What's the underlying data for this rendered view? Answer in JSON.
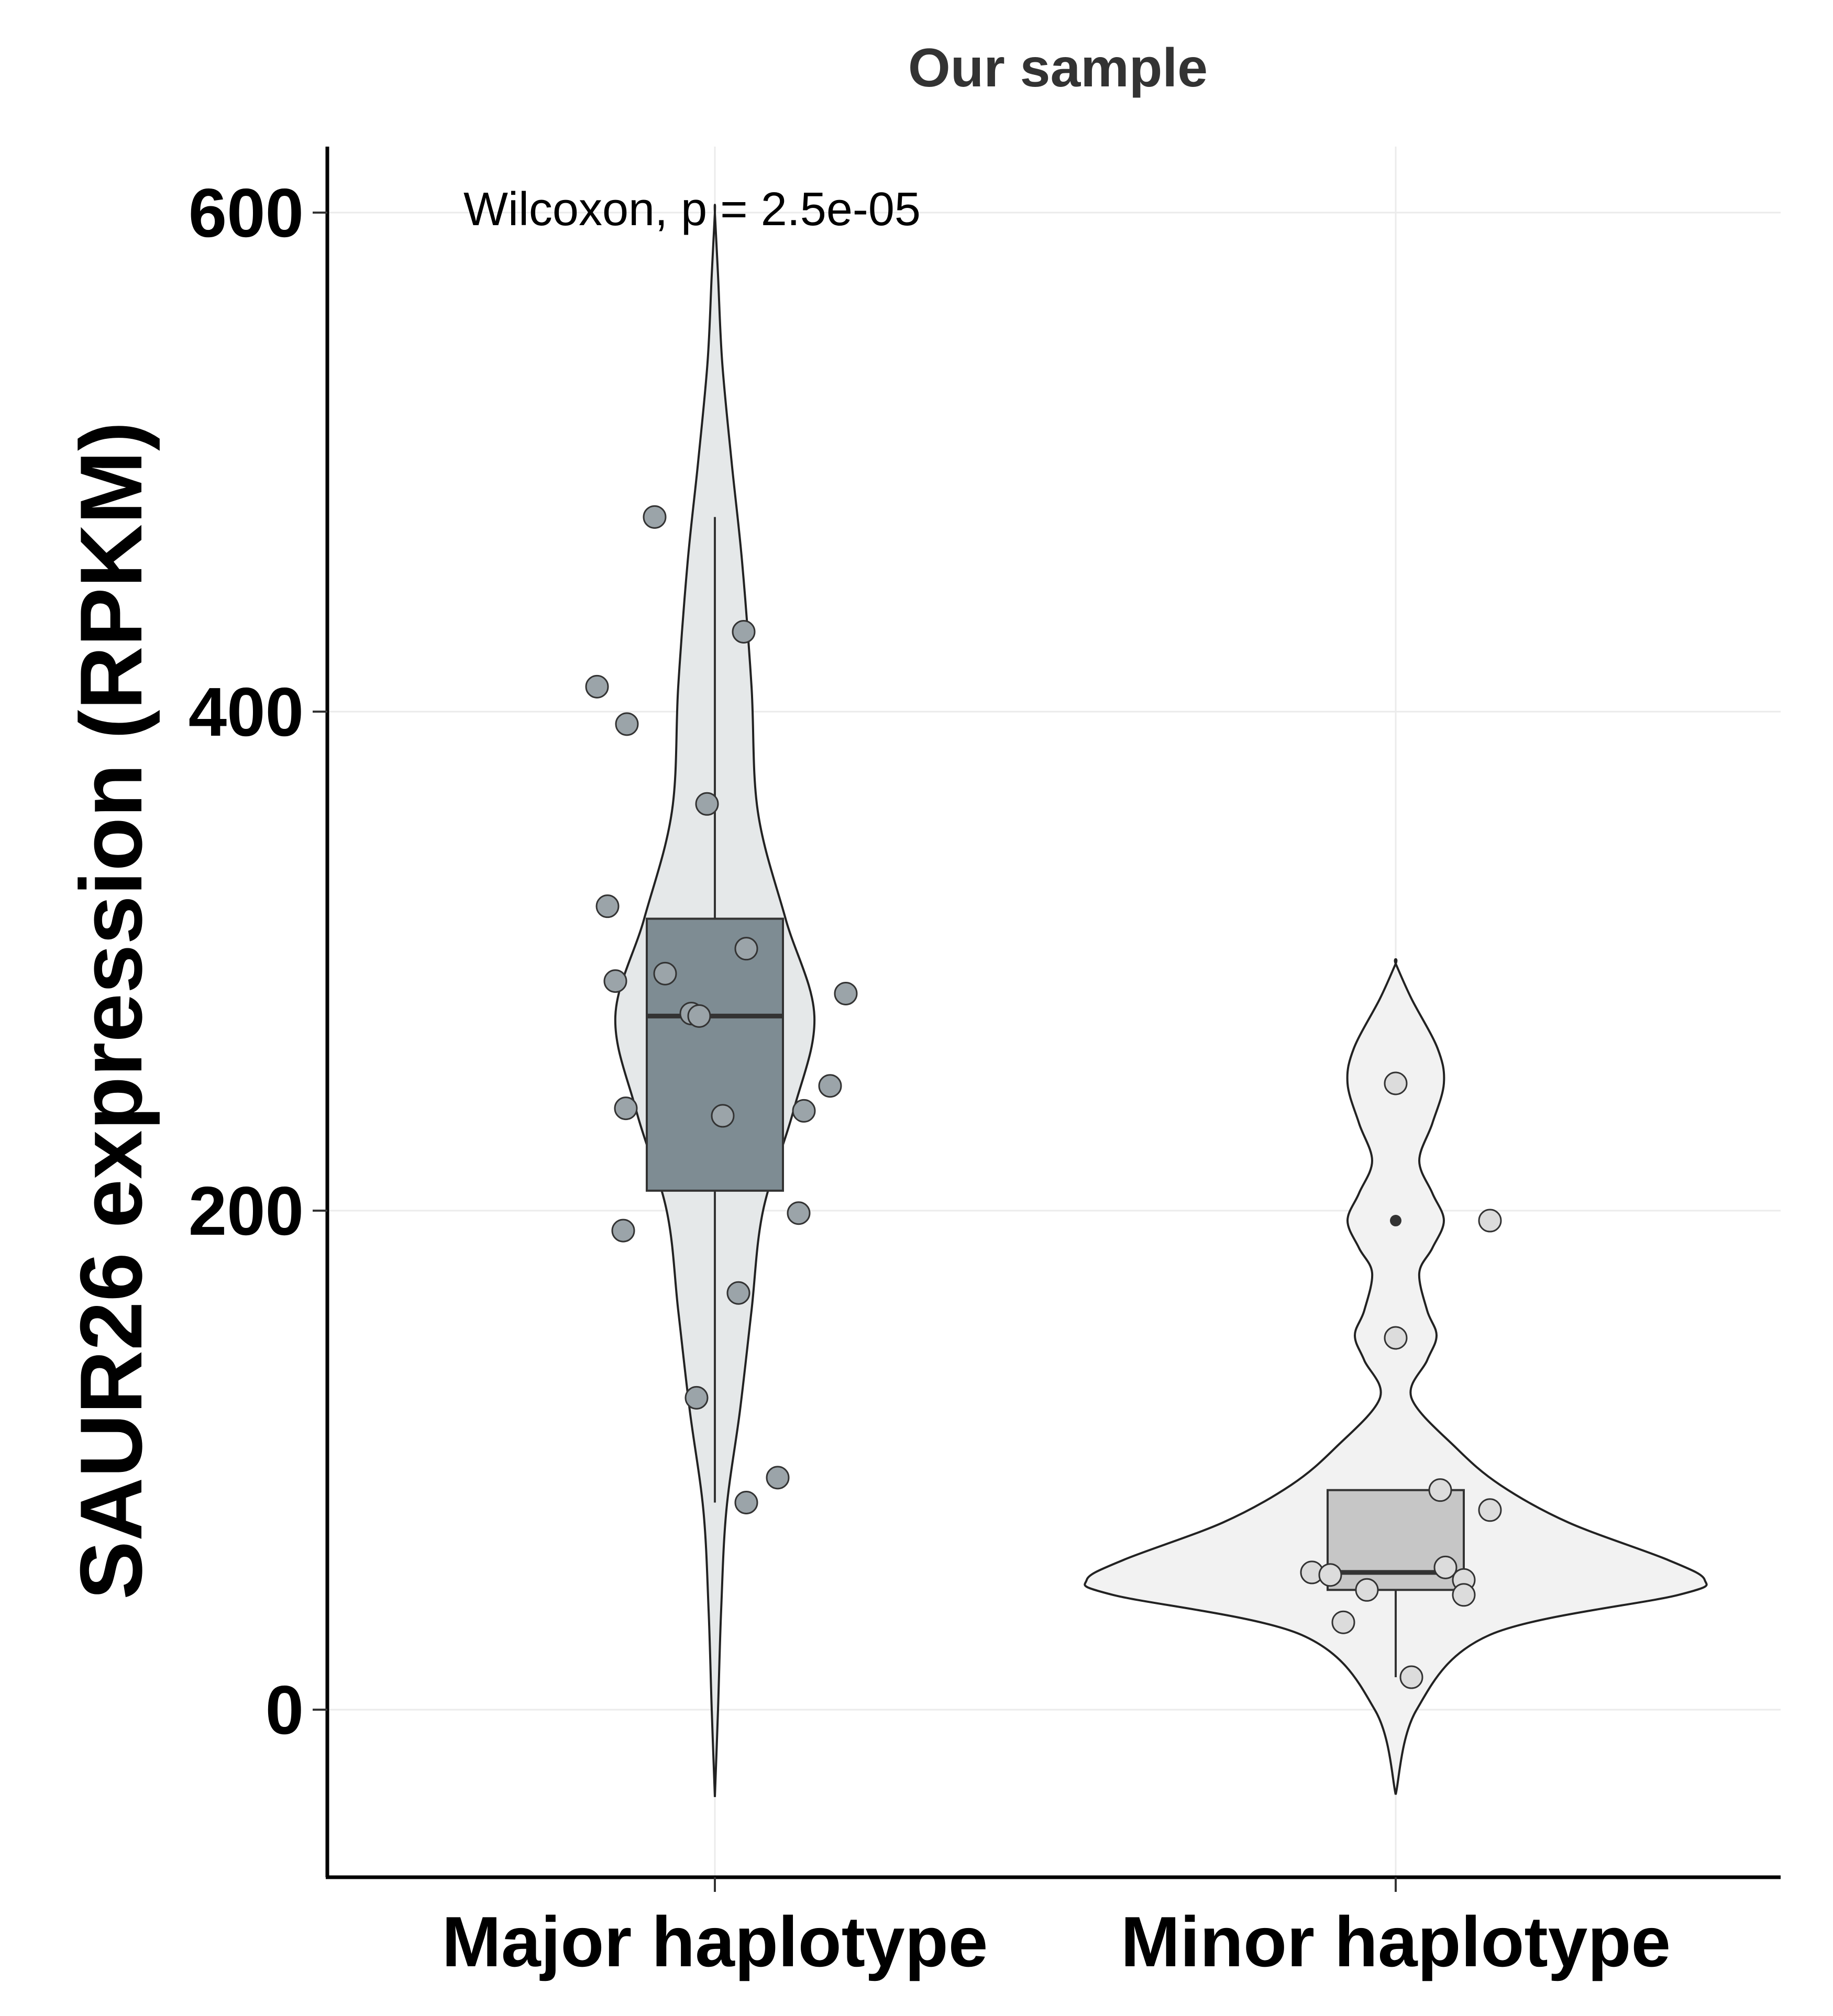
{
  "chart_data": {
    "type": "violin",
    "title": "Our sample",
    "xlabel": "",
    "ylabel": "SAUR26 expression (RPKM)",
    "ylim": [
      -67,
      625
    ],
    "yticks": [
      0,
      200,
      400,
      600
    ],
    "categories": [
      "Major haplotype",
      "Minor haplotype"
    ],
    "grid": true,
    "legend": "none",
    "annotation": "Wilcoxon, p = 2.5e-05",
    "series": [
      {
        "category": "Major haplotype",
        "violin_fill": "#e5e8e9",
        "box_fill": "#7e8c93",
        "point_fill": "#9ba4a9",
        "violin_range": [
          -35,
          600
        ],
        "box": {
          "whisker_low": 83,
          "q1": 208,
          "median": 278,
          "q3": 317,
          "whisker_high": 478
        },
        "points": [
          478,
          432,
          410,
          395,
          363,
          322,
          305,
          295,
          292,
          279,
          278,
          287,
          250,
          241,
          240,
          238,
          199,
          192,
          167,
          125,
          93,
          83
        ]
      },
      {
        "category": "Minor haplotype",
        "violin_fill": "#f2f2f2",
        "box_fill": "#c6c6c6",
        "point_fill": "#dcdcdc",
        "violin_range": [
          -34,
          299
        ],
        "box": {
          "whisker_low": 13,
          "q1": 48,
          "median": 55,
          "q3": 88,
          "whisker_high": 88
        },
        "outliers": [
          251,
          196,
          149
        ],
        "points": [
          251,
          196,
          149,
          88,
          80,
          57,
          55,
          54,
          52,
          48,
          46,
          35,
          13
        ]
      }
    ]
  }
}
